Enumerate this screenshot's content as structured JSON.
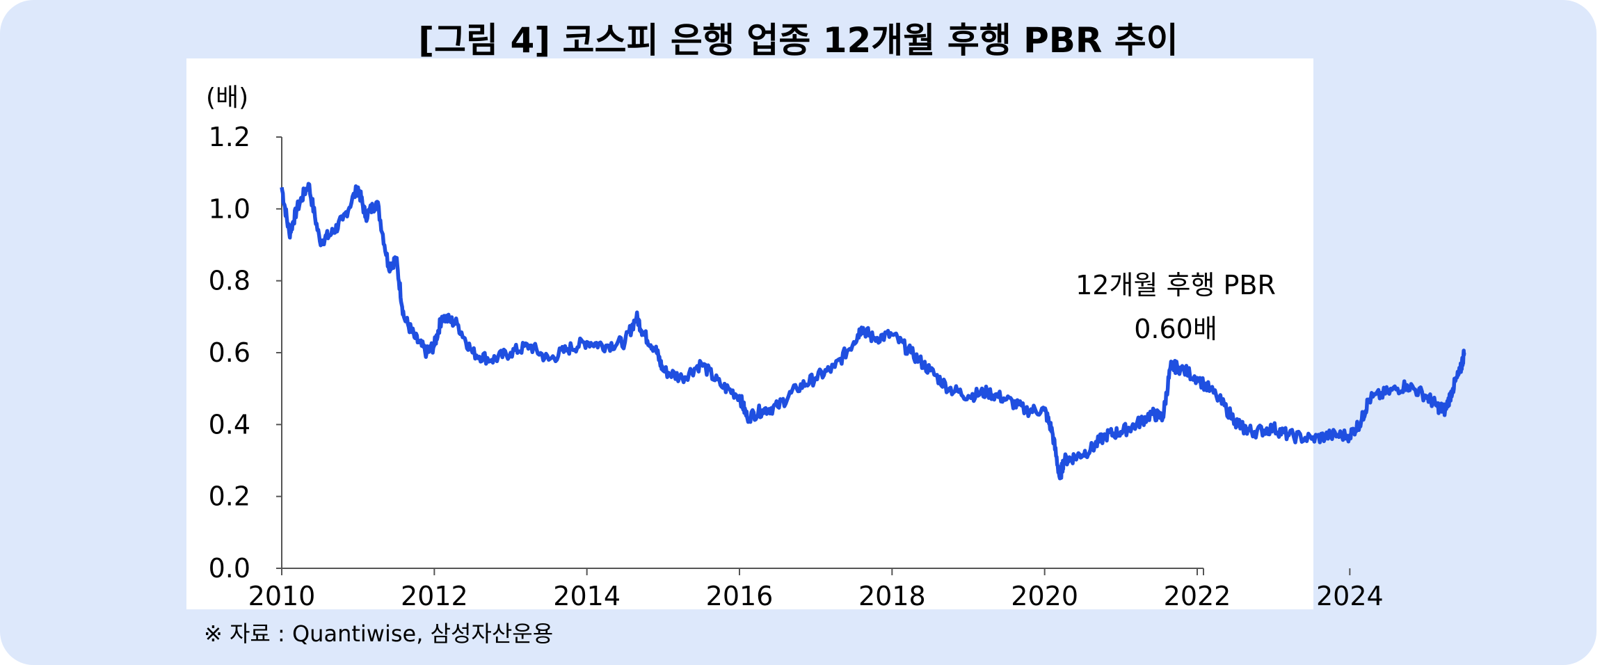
{
  "figure": {
    "title": "[그림 4] 코스피 은행 업종 12개월 후행 PBR 추이",
    "source": "※ 자료 : Quantiwise, 삼성자산운용"
  },
  "chart_data": {
    "type": "line",
    "title": "[그림 4] 코스피 은행 업종 12개월 후행 PBR 추이",
    "ylabel": "(배)",
    "xlabel": "",
    "ylim": [
      0,
      1.2
    ],
    "xlim": [
      2010,
      2026
    ],
    "grid": false,
    "y_ticks": [
      "0.0",
      "0.2",
      "0.4",
      "0.6",
      "0.8",
      "1.0",
      "1.2"
    ],
    "x_ticks": [
      "2010",
      "2012",
      "2014",
      "2016",
      "2018",
      "2020",
      "2022",
      "2024"
    ],
    "line_color": "#1f4fe0",
    "annotation": {
      "line1": "12개월 후행 PBR",
      "line2": "0.60배"
    },
    "series": [
      {
        "x": [
          2010.0,
          2010.1,
          2010.2,
          2010.35,
          2010.5,
          2010.65,
          2010.8,
          2011.0,
          2011.1,
          2011.25,
          2011.4,
          2011.5,
          2011.6,
          2011.75,
          2011.9,
          2012.0,
          2012.1,
          2012.3,
          2012.5,
          2012.75,
          2013.0,
          2013.25,
          2013.5,
          2013.75,
          2014.0,
          2014.25,
          2014.5,
          2014.65,
          2014.75,
          2014.9,
          2015.0,
          2015.25,
          2015.5,
          2015.75,
          2016.0,
          2016.1,
          2016.3,
          2016.5,
          2016.75,
          2017.0,
          2017.25,
          2017.5,
          2017.6,
          2017.75,
          2018.0,
          2018.25,
          2018.5,
          2018.75,
          2019.0,
          2019.25,
          2019.5,
          2019.75,
          2020.0,
          2020.1,
          2020.2,
          2020.25,
          2020.4,
          2020.6,
          2020.8,
          2021.0,
          2021.2,
          2021.4,
          2021.55,
          2021.65,
          2021.75,
          2022.0,
          2022.25,
          2022.5,
          2022.6,
          2022.75,
          2023.0,
          2023.2,
          2023.5,
          2023.75,
          2024.0,
          2024.15,
          2024.25,
          2024.5,
          2024.75,
          2025.0,
          2025.15,
          2025.25,
          2025.35,
          2025.45,
          2025.5
        ],
        "y": [
          1.06,
          0.93,
          1.0,
          1.07,
          0.91,
          0.93,
          0.97,
          1.06,
          0.98,
          1.02,
          0.84,
          0.86,
          0.7,
          0.64,
          0.6,
          0.62,
          0.7,
          0.68,
          0.6,
          0.58,
          0.6,
          0.62,
          0.58,
          0.61,
          0.63,
          0.62,
          0.63,
          0.7,
          0.65,
          0.61,
          0.55,
          0.53,
          0.57,
          0.51,
          0.48,
          0.42,
          0.44,
          0.45,
          0.5,
          0.53,
          0.56,
          0.63,
          0.67,
          0.64,
          0.65,
          0.6,
          0.55,
          0.5,
          0.48,
          0.49,
          0.47,
          0.44,
          0.44,
          0.38,
          0.25,
          0.3,
          0.31,
          0.33,
          0.37,
          0.38,
          0.4,
          0.43,
          0.42,
          0.56,
          0.56,
          0.53,
          0.48,
          0.41,
          0.39,
          0.38,
          0.39,
          0.37,
          0.36,
          0.37,
          0.37,
          0.41,
          0.47,
          0.49,
          0.51,
          0.48,
          0.45,
          0.44,
          0.5,
          0.55,
          0.6
        ]
      }
    ]
  }
}
